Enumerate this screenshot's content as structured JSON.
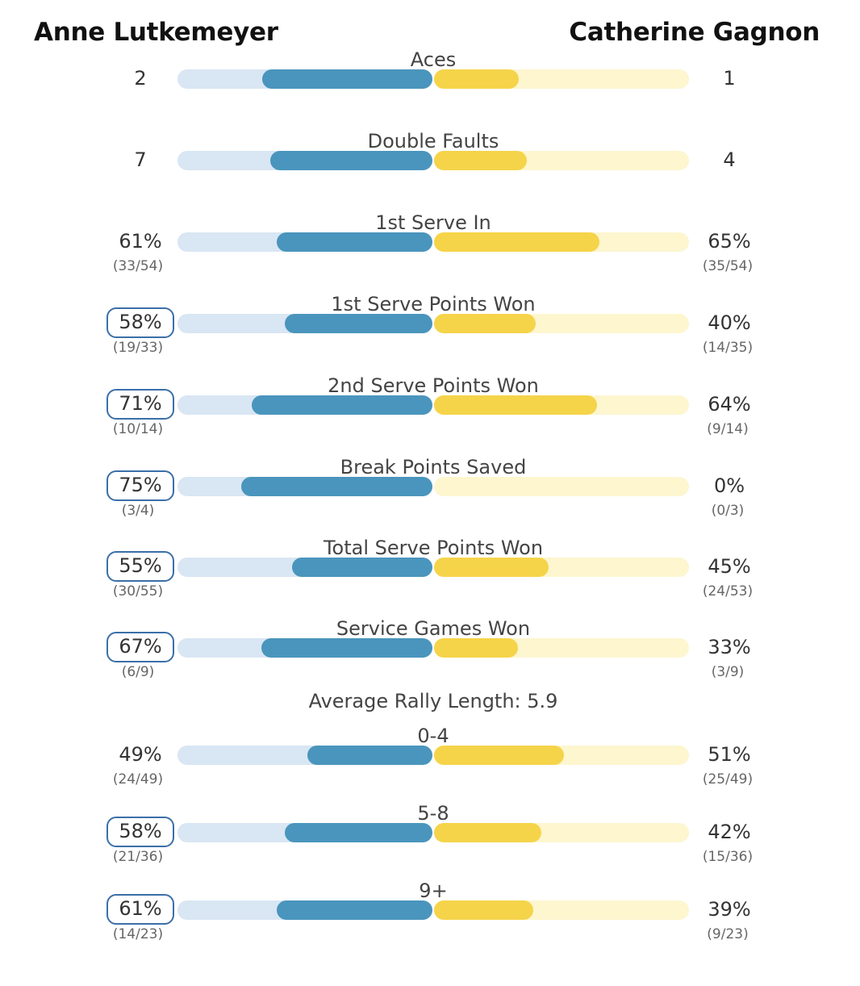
{
  "players": {
    "left": "Anne Lutkemeyer",
    "right": "Catherine Gagnon"
  },
  "colors": {
    "left_fill": "#4a95bd",
    "left_track": "#d9e6f3",
    "right_fill": "#f5d44a",
    "right_track": "#fdf6cf",
    "winner_outline": "#3b6fa8"
  },
  "section_heading": "Average Rally Length: 5.9",
  "chart_data": {
    "type": "bar",
    "series": [
      {
        "name": "Anne Lutkemeyer"
      },
      {
        "name": "Catherine Gagnon"
      }
    ],
    "stats": [
      {
        "label": "Aces",
        "left": "2",
        "right": "1",
        "left_frac": "",
        "right_frac": "",
        "left_share": 0.667,
        "right_share": 0.333,
        "winner": ""
      },
      {
        "label": "Double Faults",
        "left": "7",
        "right": "4",
        "left_frac": "",
        "right_frac": "",
        "left_share": 0.636,
        "right_share": 0.364,
        "winner": ""
      },
      {
        "label": "1st Serve In",
        "left": "61%",
        "right": "65%",
        "left_frac": "(33/54)",
        "right_frac": "(35/54)",
        "left_share": 0.61,
        "right_share": 0.65,
        "winner": ""
      },
      {
        "label": "1st Serve Points Won",
        "left": "58%",
        "right": "40%",
        "left_frac": "(19/33)",
        "right_frac": "(14/35)",
        "left_share": 0.58,
        "right_share": 0.4,
        "winner": "left"
      },
      {
        "label": "2nd Serve Points Won",
        "left": "71%",
        "right": "64%",
        "left_frac": "(10/14)",
        "right_frac": "(9/14)",
        "left_share": 0.71,
        "right_share": 0.64,
        "winner": "left"
      },
      {
        "label": "Break Points Saved",
        "left": "75%",
        "right": "0%",
        "left_frac": "(3/4)",
        "right_frac": "(0/3)",
        "left_share": 0.75,
        "right_share": 0.0,
        "winner": "left"
      },
      {
        "label": "Total Serve Points Won",
        "left": "55%",
        "right": "45%",
        "left_frac": "(30/55)",
        "right_frac": "(24/53)",
        "left_share": 0.55,
        "right_share": 0.45,
        "winner": "left"
      },
      {
        "label": "Service Games Won",
        "left": "67%",
        "right": "33%",
        "left_frac": "(6/9)",
        "right_frac": "(3/9)",
        "left_share": 0.67,
        "right_share": 0.33,
        "winner": "left"
      }
    ],
    "rally_stats": [
      {
        "label": "0-4",
        "left": "49%",
        "right": "51%",
        "left_frac": "(24/49)",
        "right_frac": "(25/49)",
        "left_share": 0.49,
        "right_share": 0.51,
        "winner": ""
      },
      {
        "label": "5-8",
        "left": "58%",
        "right": "42%",
        "left_frac": "(21/36)",
        "right_frac": "(15/36)",
        "left_share": 0.58,
        "right_share": 0.42,
        "winner": "left"
      },
      {
        "label": "9+",
        "left": "61%",
        "right": "39%",
        "left_frac": "(14/23)",
        "right_frac": "(9/23)",
        "left_share": 0.61,
        "right_share": 0.39,
        "winner": "left"
      }
    ]
  }
}
